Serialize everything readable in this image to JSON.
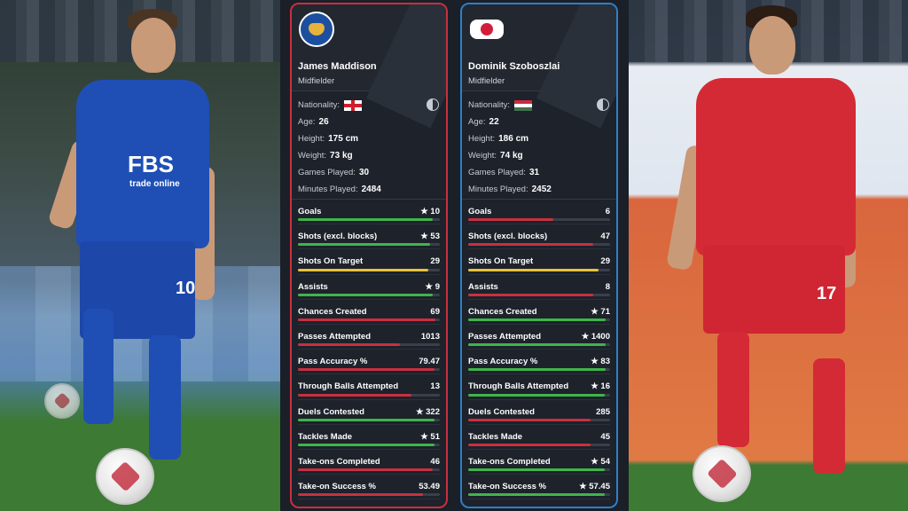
{
  "left_photo": {
    "sponsor_main": "FBS",
    "sponsor_sub": "trade online",
    "shirt_number": "10"
  },
  "right_photo": {
    "shirt_number": "17"
  },
  "players": [
    {
      "name": "James Maddison",
      "position": "Midfielder",
      "club_crest": "leicester-city-crest",
      "card_color": "#c8303f",
      "nationality_label": "Nationality:",
      "flag": "england-flag",
      "info": [
        {
          "label": "Age:",
          "value": "26"
        },
        {
          "label": "Height:",
          "value": "175 cm"
        },
        {
          "label": "Weight:",
          "value": "73 kg"
        },
        {
          "label": "Games Played:",
          "value": "30"
        },
        {
          "label": "Minutes Played:",
          "value": "2484"
        }
      ],
      "stats": [
        {
          "label": "Goals",
          "value": "★ 10",
          "fill": 0.95,
          "color": "#3fb54a"
        },
        {
          "label": "Shots (excl. blocks)",
          "value": "★ 53",
          "fill": 0.93,
          "color": "#3fb54a"
        },
        {
          "label": "Shots On Target",
          "value": "29",
          "fill": 0.92,
          "color": "#e7c23b"
        },
        {
          "label": "Assists",
          "value": "★ 9",
          "fill": 0.95,
          "color": "#3fb54a"
        },
        {
          "label": "Chances Created",
          "value": "69",
          "fill": 0.97,
          "color": "#c8303f"
        },
        {
          "label": "Passes Attempted",
          "value": "1013",
          "fill": 0.72,
          "color": "#c8303f"
        },
        {
          "label": "Pass Accuracy %",
          "value": "79.47",
          "fill": 0.96,
          "color": "#c8303f"
        },
        {
          "label": "Through Balls Attempted",
          "value": "13",
          "fill": 0.8,
          "color": "#c8303f"
        },
        {
          "label": "Duels Contested",
          "value": "★ 322",
          "fill": 0.96,
          "color": "#3fb54a"
        },
        {
          "label": "Tackles Made",
          "value": "★ 51",
          "fill": 0.96,
          "color": "#3fb54a"
        },
        {
          "label": "Take-ons Completed",
          "value": "46",
          "fill": 0.95,
          "color": "#c8303f"
        },
        {
          "label": "Take-on Success %",
          "value": "53.49",
          "fill": 0.88,
          "color": "#c8303f"
        }
      ]
    },
    {
      "name": "Dominik Szoboszlai",
      "position": "Midfielder",
      "club_crest": "rb-leipzig-crest",
      "card_color": "#2f7fc8",
      "nationality_label": "Nationality:",
      "flag": "hungary-flag",
      "info": [
        {
          "label": "Age:",
          "value": "22"
        },
        {
          "label": "Height:",
          "value": "186 cm"
        },
        {
          "label": "Weight:",
          "value": "74 kg"
        },
        {
          "label": "Games Played:",
          "value": "31"
        },
        {
          "label": "Minutes Played:",
          "value": "2452"
        }
      ],
      "stats": [
        {
          "label": "Goals",
          "value": "6",
          "fill": 0.6,
          "color": "#c8303f"
        },
        {
          "label": "Shots (excl. blocks)",
          "value": "47",
          "fill": 0.88,
          "color": "#c8303f"
        },
        {
          "label": "Shots On Target",
          "value": "29",
          "fill": 0.92,
          "color": "#e7c23b"
        },
        {
          "label": "Assists",
          "value": "8",
          "fill": 0.88,
          "color": "#c8303f"
        },
        {
          "label": "Chances Created",
          "value": "★ 71",
          "fill": 0.97,
          "color": "#3fb54a"
        },
        {
          "label": "Passes Attempted",
          "value": "★ 1400",
          "fill": 0.97,
          "color": "#3fb54a"
        },
        {
          "label": "Pass Accuracy %",
          "value": "★ 83",
          "fill": 0.97,
          "color": "#3fb54a"
        },
        {
          "label": "Through Balls Attempted",
          "value": "★ 16",
          "fill": 0.96,
          "color": "#3fb54a"
        },
        {
          "label": "Duels Contested",
          "value": "285",
          "fill": 0.86,
          "color": "#c8303f"
        },
        {
          "label": "Tackles Made",
          "value": "45",
          "fill": 0.86,
          "color": "#c8303f"
        },
        {
          "label": "Take-ons Completed",
          "value": "★ 54",
          "fill": 0.96,
          "color": "#3fb54a"
        },
        {
          "label": "Take-on Success %",
          "value": "★ 57.45",
          "fill": 0.96,
          "color": "#3fb54a"
        }
      ]
    }
  ]
}
